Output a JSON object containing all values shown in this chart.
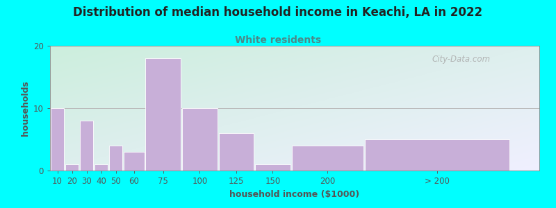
{
  "title": "Distribution of median household income in Keachi, LA in 2022",
  "subtitle": "White residents",
  "xlabel": "household income ($1000)",
  "ylabel": "households",
  "background_color": "#00FFFF",
  "bar_color": "#c8afd8",
  "categories": [
    "10",
    "20",
    "30",
    "40",
    "50",
    "60",
    "75",
    "100",
    "125",
    "150",
    "200",
    "> 200"
  ],
  "values": [
    10,
    1,
    8,
    1,
    4,
    3,
    18,
    10,
    6,
    1,
    4,
    5
  ],
  "bar_widths": [
    10,
    10,
    10,
    10,
    10,
    15,
    25,
    25,
    25,
    25,
    50,
    100
  ],
  "bar_lefts": [
    5,
    15,
    25,
    35,
    45,
    55,
    70,
    95,
    120,
    145,
    170,
    220
  ],
  "xlim": [
    5,
    340
  ],
  "ylim": [
    0,
    20
  ],
  "yticks": [
    0,
    10,
    20
  ],
  "title_fontsize": 12,
  "subtitle_fontsize": 10,
  "label_fontsize": 9,
  "tick_fontsize": 8.5,
  "title_color": "#222222",
  "subtitle_color": "#4a8a8a",
  "axis_color": "#555555",
  "watermark": "City-Data.com",
  "grad_bottom_left": "#cceedd",
  "grad_top_right": "#f0f0ff"
}
